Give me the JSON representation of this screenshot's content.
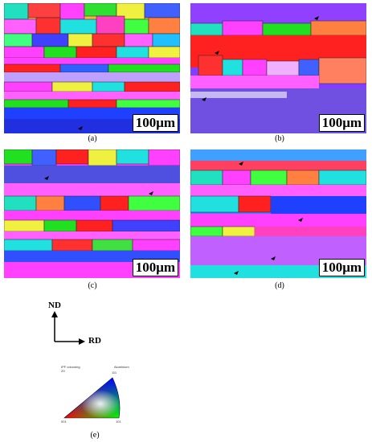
{
  "panels": [
    {
      "label": "(a)",
      "scale": "100μm"
    },
    {
      "label": "(b)",
      "scale": "100μm"
    },
    {
      "label": "(c)",
      "scale": "100μm"
    },
    {
      "label": "(d)",
      "scale": "100μm"
    }
  ],
  "axes": {
    "vertical": "ND",
    "horizontal": "RD"
  },
  "legend": {
    "label": "(e)",
    "title_line1": "IPF colouring",
    "title_line2": "Z0",
    "material": "Aluminium",
    "corner_top": "111",
    "corner_left": "001",
    "corner_right": "101"
  },
  "colors": {
    "red": "#ff2020",
    "green": "#20e020",
    "blue": "#2030ff",
    "magenta": "#ff40ff",
    "cyan": "#20e0e0",
    "yellow": "#f0f040"
  }
}
